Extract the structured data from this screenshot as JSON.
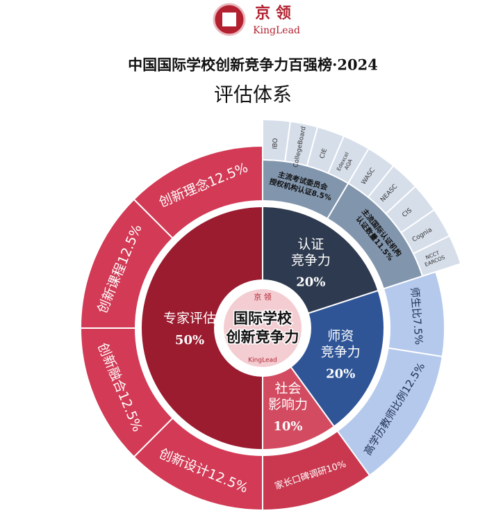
{
  "header": {
    "brand": "京 领",
    "brand_en": "KingLead",
    "title": "中国国际学校创新竞争力百强榜·2024",
    "subtitle": "评估体系"
  },
  "chart_data": {
    "type": "sunburst",
    "center_lines": [
      "国际学校",
      "创新竞争力"
    ],
    "center_brand": "京 领",
    "center_brand_en": "KingLead",
    "segments": [
      {
        "name_lines": [
          "认证",
          "竞争力"
        ],
        "value": 20,
        "value_label": "20%",
        "color": "#2e3a4f",
        "child_color": "#8195ad",
        "child_text_color": "#111111",
        "children": [
          {
            "label_lines": [
              "主流考试委员会",
              "授权机构认证8.5%"
            ],
            "value": 8.5,
            "organizations": [
              [
                "IBO"
              ],
              [
                "CollegeBoard"
              ],
              [
                "CIE"
              ],
              [
                "Edexcel",
                "AQA"
              ]
            ]
          },
          {
            "label_lines": [
              "主流国际认证机构",
              "认证数量11.5%"
            ],
            "value": 11.5,
            "organizations": [
              [
                "WASC"
              ],
              [
                "NEASC"
              ],
              [
                "CIS"
              ],
              [
                "Cognia"
              ],
              [
                "NCCT",
                "EARCOS"
              ]
            ]
          }
        ]
      },
      {
        "name_lines": [
          "师资",
          "竞争力"
        ],
        "value": 20,
        "value_label": "20%",
        "color": "#2f5597",
        "child_color": "#b4c9ec",
        "child_text_color": "#1f2f55",
        "children": [
          {
            "label_lines": [
              "师生比7.5%"
            ],
            "value": 7.5
          },
          {
            "label_lines": [
              "高学历教师比例12.5%"
            ],
            "value": 12.5
          }
        ]
      },
      {
        "name_lines": [
          "社会",
          "影响力"
        ],
        "value": 10,
        "value_label": "10%",
        "color": "#d24b60",
        "child_color": "#c9384f",
        "child_text_color": "#ffffff",
        "children": [
          {
            "label_lines": [
              "家长口碑调研10%"
            ],
            "value": 10
          }
        ]
      },
      {
        "name_lines": [
          "专家评估"
        ],
        "value": 50,
        "value_label": "50%",
        "color": "#9b1b2f",
        "child_color": "#d23a55",
        "child_text_color": "#ffffff",
        "children": [
          {
            "label_lines": [
              "创新设计12.5%"
            ],
            "value": 12.5
          },
          {
            "label_lines": [
              "创新融合12.5%"
            ],
            "value": 12.5
          },
          {
            "label_lines": [
              "创新课程12.5%"
            ],
            "value": 12.5
          },
          {
            "label_lines": [
              "创新理念12.5%"
            ],
            "value": 12.5
          }
        ]
      }
    ]
  }
}
